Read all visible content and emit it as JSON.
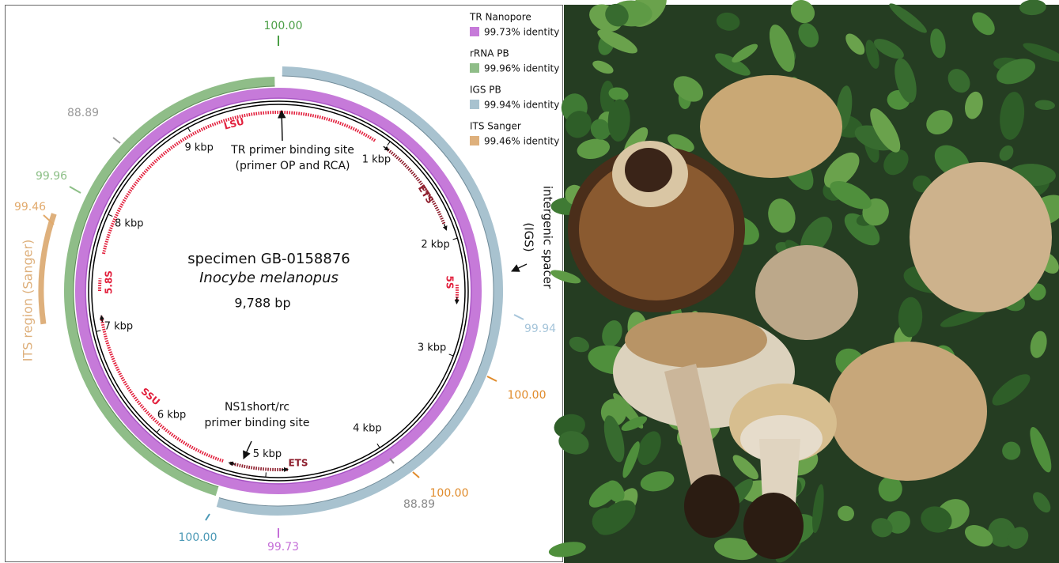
{
  "map": {
    "specimen": "specimen GB-0158876",
    "species": "Inocybe melanopus",
    "length": "9,788 bp",
    "kbp_ticks": [
      "1 kbp",
      "2 kbp",
      "3 kbp",
      "4 kbp",
      "5 kbp",
      "6 kbp",
      "7 kbp",
      "8 kbp",
      "9 kbp"
    ],
    "features": [
      "LSU",
      "ETS",
      "5S",
      "ETS",
      "SSU",
      "5.8S"
    ],
    "tr_primer": [
      "TR primer binding site",
      "(primer OP and RCA)"
    ],
    "ns1_primer": [
      "NS1short/rc",
      "primer binding site"
    ],
    "igs": [
      "intergenic spacer",
      "(IGS)"
    ],
    "its_region": "ITS region (Sanger)",
    "identity_labels": [
      {
        "text": "100.00",
        "color": "#4a9e45"
      },
      {
        "text": "88.89",
        "color": "#9a9a9a"
      },
      {
        "text": "99.96",
        "color": "#8cbf86"
      },
      {
        "text": "99.46",
        "color": "#e2aa6c"
      },
      {
        "text": "99.94",
        "color": "#a6c5da"
      },
      {
        "text": "100.00",
        "color": "#e08b2b"
      },
      {
        "text": "100.00",
        "color": "#e08b2b"
      },
      {
        "text": "88.89",
        "color": "#888888"
      },
      {
        "text": "100.00",
        "color": "#4a98b5"
      },
      {
        "text": "99.73",
        "color": "#c56fd8"
      }
    ]
  },
  "legend": [
    {
      "name": "TR Nanopore",
      "identity": "99.73% identity",
      "color": "#c67ad9"
    },
    {
      "name": "rRNA PB",
      "identity": "99.96% identity",
      "color": "#8fbd88"
    },
    {
      "name": "IGS PB",
      "identity": "99.94% identity",
      "color": "#a8c2cf"
    },
    {
      "name": "ITS Sanger",
      "identity": "99.46% identity",
      "color": "#deb07c"
    }
  ]
}
